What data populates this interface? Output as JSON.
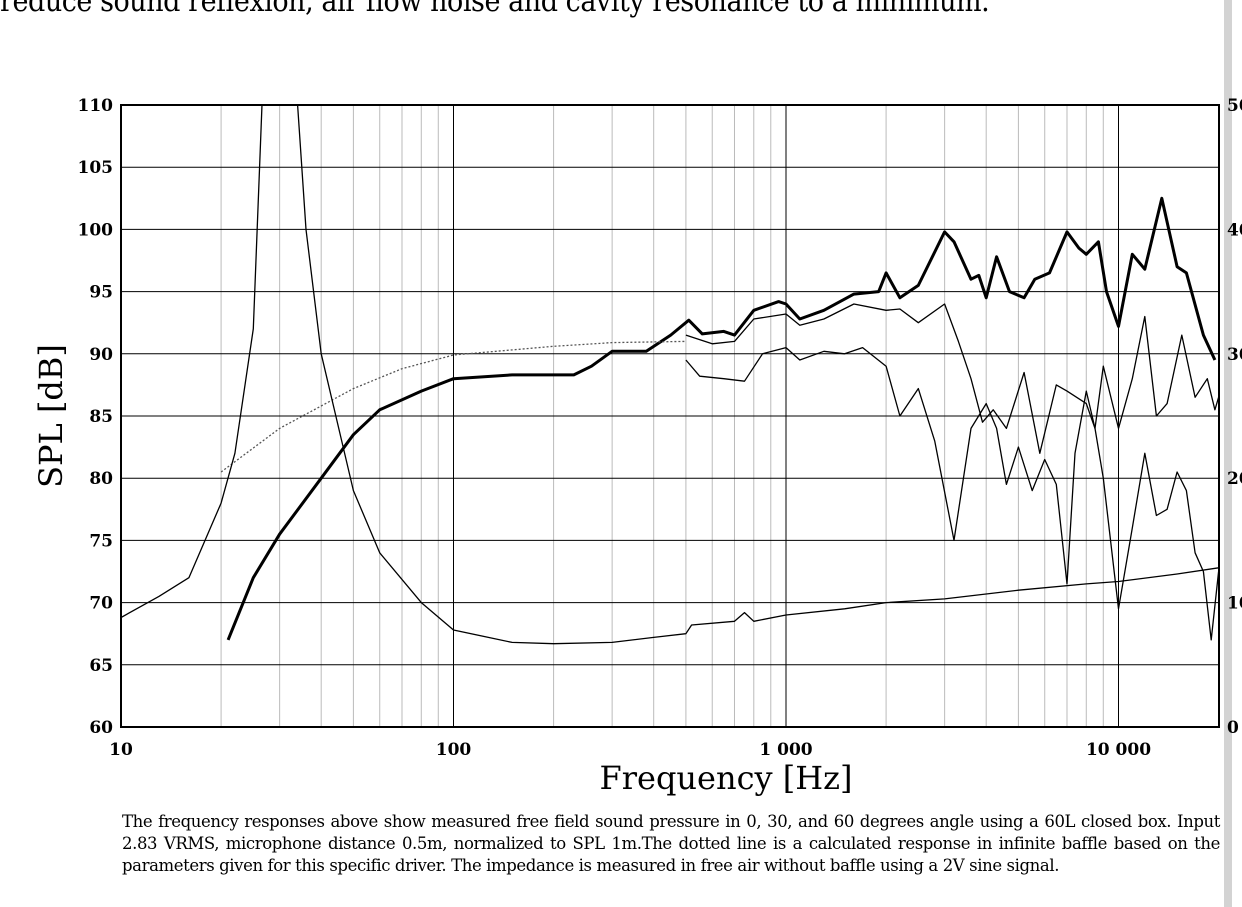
{
  "top_text": "reduce sound reflexion, air flow noise and cavity resonance to a minimum.",
  "caption": "The frequency responses above show measured free field sound pressure in 0, 30, and 60 degrees angle using a 60L closed box. Input 2.83 VRMS, microphone distance 0.5m, normalized to SPL 1m.The dotted line is a calculated response in infinite baffle based on the parameters given for this specific driver. The impedance is measured in free air without baffle using a 2V sine signal.",
  "chart_data": {
    "type": "line",
    "xlabel": "Frequency [Hz]",
    "ylabel": "SPL [dB]",
    "xscale": "log",
    "xlim": [
      10,
      20000
    ],
    "ylim": [
      60,
      110
    ],
    "y2lim": [
      0,
      50
    ],
    "xticks": [
      10,
      100,
      1000,
      10000
    ],
    "xtick_labels": [
      "10",
      "100",
      "1 000",
      "10 000"
    ],
    "yticks": [
      "60",
      "65",
      "70",
      "75",
      "80",
      "85",
      "90",
      "95",
      "100",
      "105",
      "110"
    ],
    "y2ticks": [
      "0",
      "10",
      "20",
      "30",
      "40",
      "50"
    ],
    "grid": true,
    "series": [
      {
        "name": "0 deg",
        "axis": "left",
        "style": "thick",
        "x": [
          21,
          25,
          30,
          40,
          50,
          60,
          80,
          100,
          150,
          230,
          260,
          300,
          380,
          450,
          510,
          560,
          650,
          700,
          800,
          950,
          1000,
          1100,
          1300,
          1600,
          1900,
          2000,
          2200,
          2500,
          3000,
          3200,
          3600,
          3800,
          4000,
          4300,
          4700,
          5200,
          5600,
          6200,
          7000,
          7600,
          8000,
          8700,
          9200,
          10000,
          11000,
          12000,
          13500,
          15000,
          16000,
          18000,
          19500
        ],
        "y": [
          67,
          72,
          75.5,
          80,
          83.5,
          85.5,
          87,
          88,
          88.3,
          88.3,
          89,
          90.2,
          90.2,
          91.5,
          92.7,
          91.6,
          91.8,
          91.5,
          93.5,
          94.2,
          94,
          92.8,
          93.5,
          94.8,
          95,
          96.5,
          94.5,
          95.5,
          99.8,
          99,
          96,
          96.3,
          94.5,
          97.8,
          95,
          94.5,
          96,
          96.5,
          99.8,
          98.5,
          98,
          99,
          95,
          92.2,
          98,
          96.8,
          102.5,
          97,
          96.5,
          91.5,
          89.5
        ]
      },
      {
        "name": "30 deg",
        "axis": "left",
        "style": "thin",
        "x": [
          500,
          600,
          700,
          800,
          1000,
          1100,
          1300,
          1600,
          2000,
          2200,
          2500,
          3000,
          3300,
          3600,
          3900,
          4200,
          4600,
          5200,
          5800,
          6500,
          7000,
          8000,
          8500,
          9000,
          10000,
          11000,
          12000,
          13000,
          14000,
          15500,
          17000,
          18500,
          19500,
          20000
        ],
        "y": [
          91.5,
          90.8,
          91,
          92.8,
          93.2,
          92.3,
          92.8,
          94,
          93.5,
          93.6,
          92.5,
          94,
          91,
          88,
          84.5,
          85.5,
          84,
          88.5,
          82,
          87.5,
          87,
          86,
          84,
          89,
          84,
          88,
          93,
          85,
          86,
          91.5,
          86.5,
          88,
          85.5,
          86.5
        ]
      },
      {
        "name": "60 deg",
        "axis": "left",
        "style": "thin",
        "x": [
          500,
          550,
          650,
          750,
          850,
          1000,
          1100,
          1300,
          1500,
          1700,
          2000,
          2200,
          2500,
          2800,
          3200,
          3600,
          4000,
          4300,
          4600,
          5000,
          5500,
          6000,
          6500,
          7000,
          7400,
          8000,
          8500,
          9000,
          10000,
          11000,
          12000,
          13000,
          14000,
          15000,
          16000,
          17000,
          18000,
          19000,
          20000
        ],
        "y": [
          89.5,
          88.2,
          88,
          87.8,
          90,
          90.5,
          89.5,
          90.2,
          90,
          90.5,
          89,
          85,
          87.2,
          83,
          75,
          84,
          86,
          84,
          79.5,
          82.5,
          79,
          81.5,
          79.5,
          71.5,
          82,
          87,
          84,
          80,
          69.5,
          76,
          82,
          77,
          77.5,
          80.5,
          79,
          74,
          72.5,
          67,
          72.5
        ]
      },
      {
        "name": "calculated infinite baffle",
        "axis": "left",
        "style": "dotted",
        "x": [
          20,
          30,
          50,
          70,
          100,
          200,
          300,
          500
        ],
        "y": [
          80.5,
          84,
          87.2,
          88.8,
          89.9,
          90.6,
          90.9,
          91
        ]
      },
      {
        "name": "impedance",
        "axis": "right",
        "style": "thin",
        "x": [
          10,
          13,
          16,
          20,
          22,
          25,
          27,
          30,
          33,
          36,
          40,
          50,
          60,
          80,
          100,
          150,
          200,
          300,
          400,
          500,
          520,
          700,
          750,
          800,
          1000,
          1500,
          2000,
          3000,
          5000,
          8000,
          10000,
          15000,
          20000
        ],
        "y": [
          8.8,
          10.5,
          12,
          18,
          22,
          32,
          55,
          60,
          55,
          40,
          30,
          19,
          14,
          10,
          7.8,
          6.8,
          6.7,
          6.8,
          7.2,
          7.5,
          8.2,
          8.5,
          9.2,
          8.5,
          9,
          9.5,
          10,
          10.3,
          11,
          11.5,
          11.7,
          12.3,
          12.8
        ]
      }
    ]
  }
}
